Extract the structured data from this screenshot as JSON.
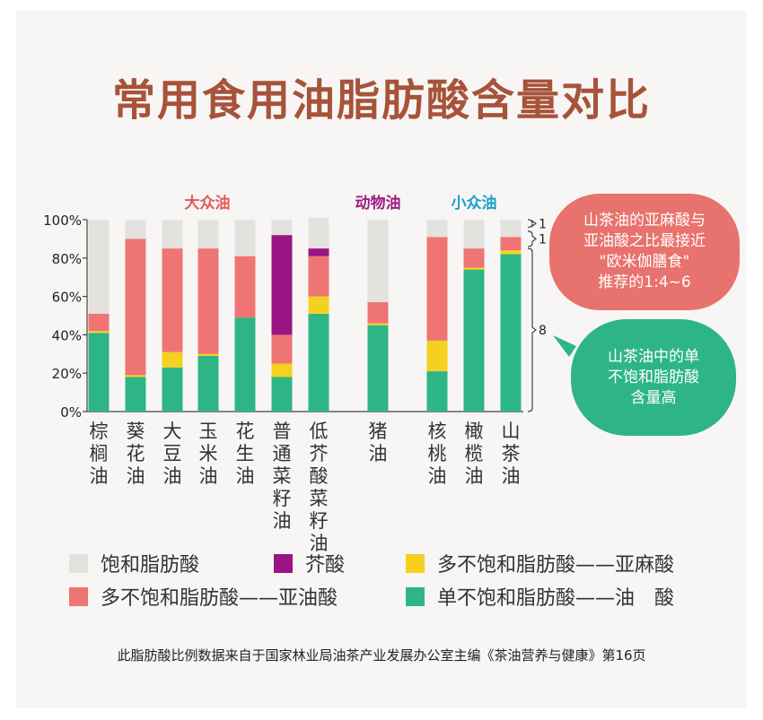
{
  "title": "常用食用油脂肪酸含量对比",
  "chart_data": {
    "type": "bar",
    "stacked": true,
    "y_ticks": [
      "0%",
      "20%",
      "40%",
      "60%",
      "80%",
      "100%"
    ],
    "ylim": [
      0,
      100
    ],
    "groups": [
      {
        "label": "大众油",
        "color": "#e05a5a",
        "categories": [
          "棕榈油",
          "葵花油",
          "大豆油",
          "玉米油",
          "花生油",
          "普通菜籽油",
          "低芥酸菜籽油"
        ]
      },
      {
        "label": "动物油",
        "color": "#9b1d7f",
        "categories": [
          "猪油"
        ]
      },
      {
        "label": "小众油",
        "color": "#1ea0c8",
        "categories": [
          "核桃油",
          "橄榄油",
          "山茶油"
        ]
      }
    ],
    "categories": [
      "棕榈油",
      "葵花油",
      "大豆油",
      "玉米油",
      "花生油",
      "普通菜籽油",
      "低芥酸菜籽油",
      "猪油",
      "核桃油",
      "橄榄油",
      "山茶油"
    ],
    "series": [
      {
        "name": "单不饱和脂肪酸——油　酸",
        "color": "#2eb585",
        "values": [
          41,
          18,
          23,
          29,
          49,
          18,
          51,
          45,
          21,
          74,
          82
        ]
      },
      {
        "name": "多不饱和脂肪酸——亚麻酸",
        "color": "#f5d11f",
        "values": [
          1,
          1,
          8,
          1,
          0,
          7,
          9,
          1,
          16,
          1,
          2
        ]
      },
      {
        "name": "多不饱和脂肪酸——亚油酸",
        "color": "#ef7474",
        "values": [
          9,
          71,
          54,
          55,
          32,
          15,
          21,
          11,
          54,
          10,
          7
        ]
      },
      {
        "name": "芥酸",
        "color": "#9b1484",
        "values": [
          0,
          0,
          0,
          0,
          0,
          52,
          4,
          0,
          0,
          0,
          0
        ]
      },
      {
        "name": "饱和脂肪酸",
        "color": "#e3e2df",
        "values": [
          49,
          10,
          15,
          15,
          19,
          8,
          16,
          43,
          9,
          15,
          9
        ]
      }
    ],
    "brackets": [
      {
        "label": "1",
        "from": 96,
        "to": 100
      },
      {
        "label": "1",
        "from": 86,
        "to": 94
      },
      {
        "label": "8",
        "from": 0,
        "to": 85
      }
    ],
    "grid": false
  },
  "legend_order": [
    [
      "饱和脂肪酸",
      "芥酸",
      "多不饱和脂肪酸——亚麻酸"
    ],
    [
      "多不饱和脂肪酸——亚油酸",
      "单不饱和脂肪酸——油　酸"
    ]
  ],
  "callouts": {
    "ratio": "山茶油的亚麻酸与\n亚油酸之比最接近\n\"欧米伽膳食\"\n推荐的1:4~6",
    "oleic": "山茶油中的单\n不饱和脂肪酸\n含量高"
  },
  "source": "此脂肪酸比例数据来自于国家林业局油茶产业发展办公室主编《茶油营养与健康》第16页"
}
